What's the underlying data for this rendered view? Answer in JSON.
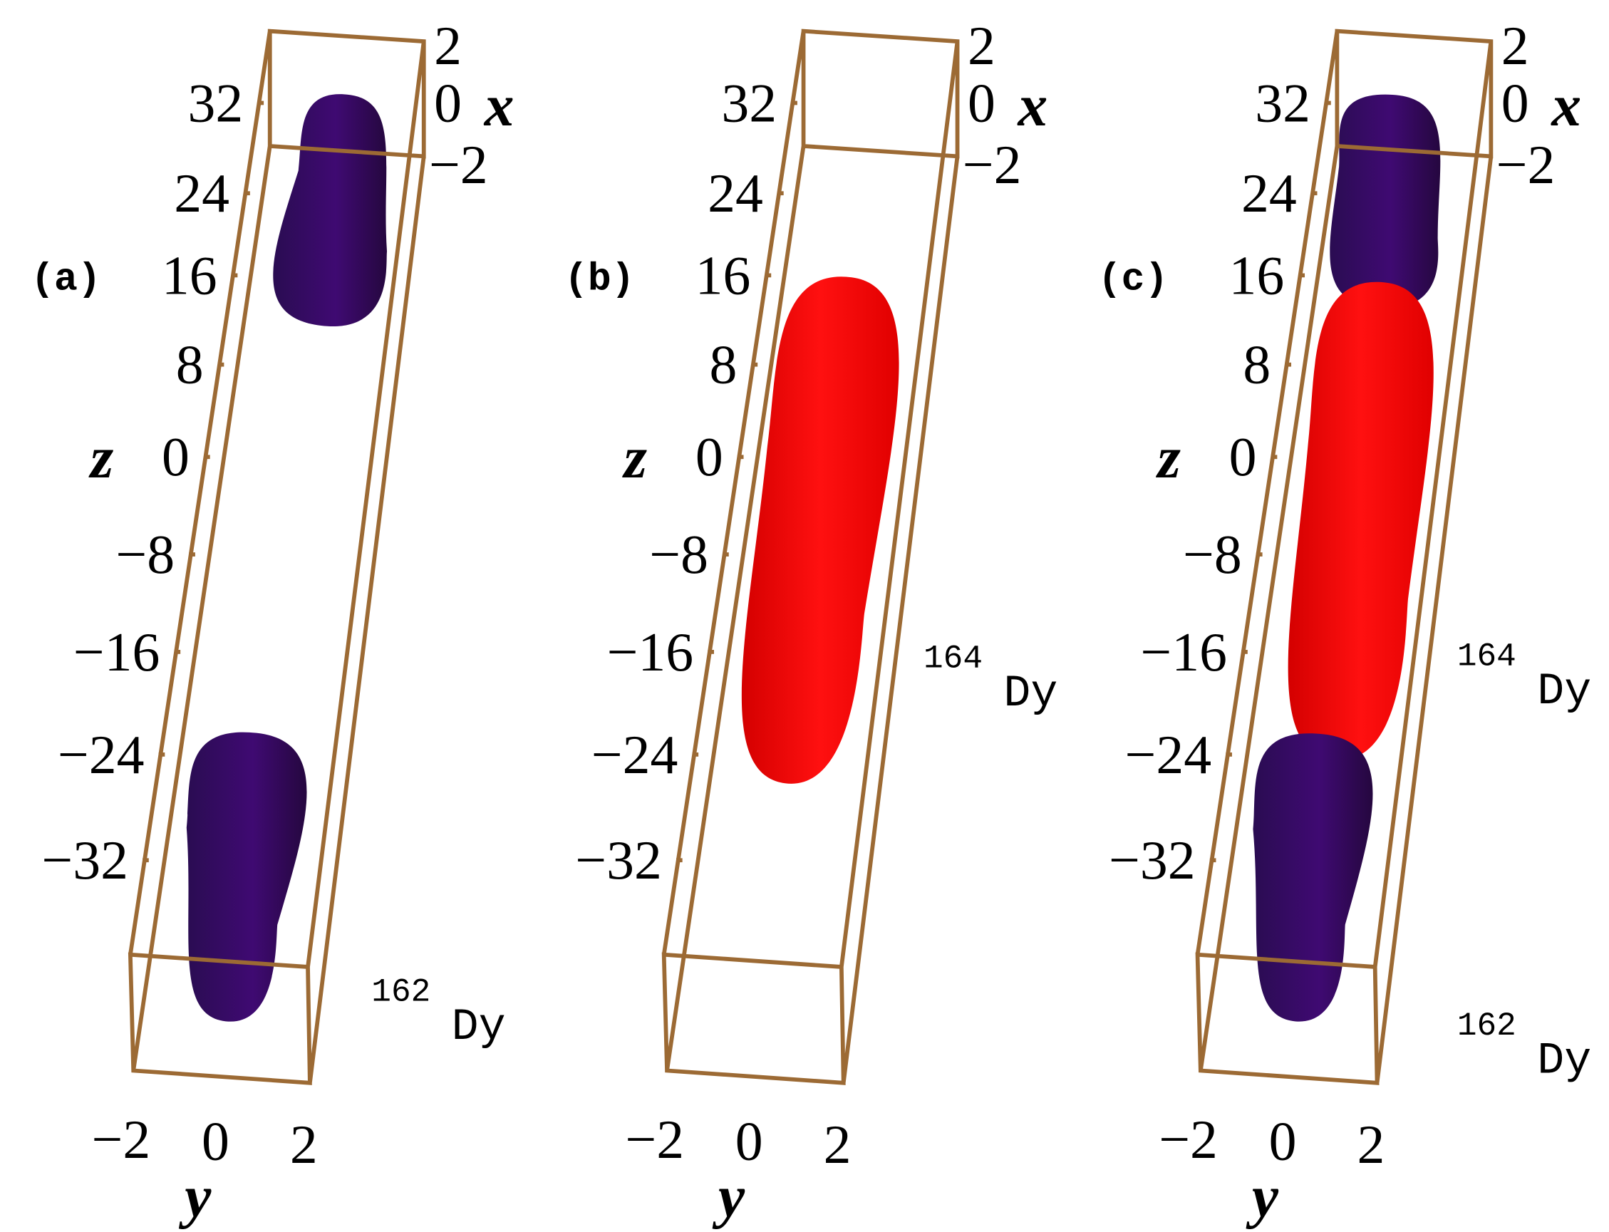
{
  "panels": [
    {
      "label": "(a)",
      "z_axis": "z",
      "x_axis": "x",
      "y_axis": "y",
      "z_ticks": [
        "32",
        "24",
        "16",
        "8",
        "0",
        "−8",
        "−16",
        "−24",
        "−32"
      ],
      "x_ticks": [
        "2",
        "0",
        "−2"
      ],
      "y_ticks": [
        "−2",
        "0",
        "2"
      ],
      "species": [
        {
          "mass": "162",
          "element": "Dy"
        }
      ]
    },
    {
      "label": "(b)",
      "z_axis": "z",
      "x_axis": "x",
      "y_axis": "y",
      "z_ticks": [
        "32",
        "24",
        "16",
        "8",
        "0",
        "−8",
        "−16",
        "−24",
        "−32"
      ],
      "x_ticks": [
        "2",
        "0",
        "−2"
      ],
      "y_ticks": [
        "−2",
        "0",
        "2"
      ],
      "species": [
        {
          "mass": "164",
          "element": "Dy"
        }
      ]
    },
    {
      "label": "(c)",
      "z_axis": "z",
      "x_axis": "x",
      "y_axis": "y",
      "z_ticks": [
        "32",
        "24",
        "16",
        "8",
        "0",
        "−8",
        "−16",
        "−24",
        "−32"
      ],
      "x_ticks": [
        "2",
        "0",
        "−2"
      ],
      "y_ticks": [
        "−2",
        "0",
        "2"
      ],
      "species": [
        {
          "mass": "164",
          "element": "Dy"
        },
        {
          "mass": "162",
          "element": "Dy"
        }
      ]
    }
  ]
}
